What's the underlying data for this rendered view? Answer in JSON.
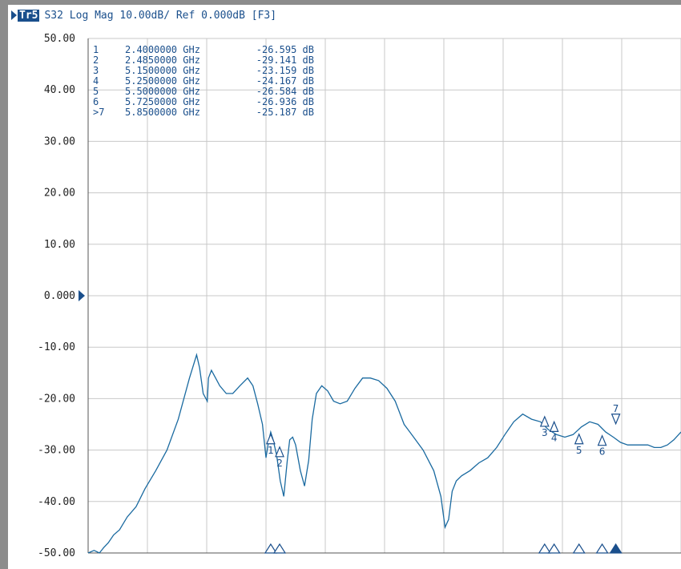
{
  "header": {
    "trace_badge": "Tr5",
    "trace_text": "S32 Log Mag 10.00dB/ Ref 0.000dB [F3]"
  },
  "chart_data": {
    "type": "line",
    "title": "",
    "xlabel": "",
    "ylabel": "",
    "xlim": [
      0,
      100
    ],
    "ylim": [
      -50,
      50
    ],
    "y_ticks": [
      "50.00",
      "40.00",
      "30.00",
      "20.00",
      "10.00",
      "0.000",
      "-10.00",
      "-20.00",
      "-30.00",
      "-40.00",
      "-50.00"
    ],
    "grid": true,
    "reference_level": 0,
    "series": [
      {
        "name": "S32",
        "x": [
          0,
          1.0,
          1.9,
          2.6,
          3.4,
          4.3,
          5.3,
          6.6,
          8.1,
          9.6,
          11.4,
          13.3,
          15.2,
          17.1,
          18.3,
          18.8,
          19.4,
          20.1,
          20.3,
          20.8,
          21.5,
          22.2,
          23.3,
          24.4,
          25.6,
          26.9,
          27.8,
          28.6,
          29.4,
          30.0,
          30.4,
          30.8,
          31.2,
          31.8,
          32.4,
          33.0,
          33.6,
          34.0,
          34.5,
          35.0,
          35.8,
          36.5,
          37.2,
          37.8,
          38.5,
          39.4,
          40.4,
          41.4,
          42.5,
          43.7,
          45.0,
          46.3,
          47.6,
          49.0,
          50.4,
          51.8,
          53.3,
          54.9,
          56.5,
          58.3,
          59.5,
          60.2,
          60.8,
          61.4,
          62.1,
          63.0,
          64.4,
          65.9,
          67.4,
          68.9,
          70.3,
          71.8,
          73.3,
          74.8,
          76.3,
          77.6,
          79.0,
          80.4,
          81.8,
          83.2,
          84.6,
          86.0,
          87.3,
          88.6,
          89.8,
          91.0,
          92.2,
          93.3,
          94.4,
          95.5,
          96.6,
          97.7,
          98.8,
          100
        ],
        "y": [
          -50.0,
          -49.5,
          -50.0,
          -49.0,
          -48.0,
          -46.5,
          -45.5,
          -43.0,
          -41.0,
          -37.5,
          -34.0,
          -30.0,
          -24.0,
          -16.0,
          -11.5,
          -14.0,
          -19.0,
          -20.5,
          -16.0,
          -14.5,
          -16.0,
          -17.5,
          -19.0,
          -19.0,
          -17.5,
          -16.0,
          -17.5,
          -21.0,
          -25.0,
          -31.5,
          -28.5,
          -26.5,
          -28.0,
          -31.0,
          -36.0,
          -39.0,
          -32.0,
          -28.0,
          -27.5,
          -29.0,
          -34.0,
          -37.0,
          -32.0,
          -24.0,
          -19.0,
          -17.5,
          -18.5,
          -20.5,
          -21.0,
          -20.5,
          -18.0,
          -16.0,
          -16.0,
          -16.5,
          -18.0,
          -20.5,
          -25.0,
          -27.5,
          -30.0,
          -34.0,
          -39.0,
          -45.0,
          -43.5,
          -38.0,
          -36.0,
          -35.0,
          -34.0,
          -32.5,
          -31.5,
          -29.5,
          -27.0,
          -24.5,
          -23.0,
          -24.0,
          -24.5,
          -26.0,
          -27.0,
          -27.5,
          -27.0,
          -25.5,
          -24.5,
          -25.0,
          -26.5,
          -27.5,
          -28.5,
          -29.0,
          -29.0,
          -29.0,
          -29.0,
          -29.5,
          -29.5,
          -29.0,
          -28.0,
          -26.5
        ]
      }
    ],
    "markers": [
      {
        "label": "1",
        "index": "1",
        "freq": "2.4000000 GHz",
        "value": "-26.595 dB",
        "x": 30.8,
        "y": -26.6,
        "active": false
      },
      {
        "label": "2",
        "index": "2",
        "freq": "2.4850000 GHz",
        "value": "-29.141 dB",
        "x": 32.3,
        "y": -29.1,
        "active": false
      },
      {
        "label": "3",
        "index": "3",
        "freq": "5.1500000 GHz",
        "value": "-23.159 dB",
        "x": 77.0,
        "y": -23.2,
        "active": false
      },
      {
        "label": "4",
        "index": "4",
        "freq": "5.2500000 GHz",
        "value": "-24.167 dB",
        "x": 78.6,
        "y": -24.2,
        "active": false
      },
      {
        "label": "5",
        "index": "5",
        "freq": "5.5000000 GHz",
        "value": "-26.584 dB",
        "x": 82.8,
        "y": -26.6,
        "active": false
      },
      {
        "label": "6",
        "index": "6",
        "freq": "5.7250000 GHz",
        "value": "-26.936 dB",
        "x": 86.7,
        "y": -26.9,
        "active": false
      },
      {
        "label": "7",
        "index": ">7",
        "freq": "5.8500000 GHz",
        "value": "-25.187 dB",
        "x": 89.0,
        "y": -25.2,
        "active": true
      }
    ]
  },
  "colors": {
    "trace": "#1a6aa0",
    "grid": "#c8c8c8",
    "marker": "#1a4f8c",
    "axis": "#555555"
  }
}
